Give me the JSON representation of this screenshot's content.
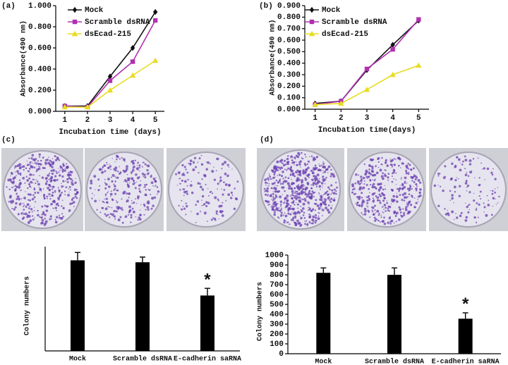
{
  "chart_data": [
    {
      "type": "line",
      "panel_label": "(a)",
      "xlabel": "Incubation time (days)",
      "ylabel": "Absorbance(490 nm)",
      "x": [
        1,
        2,
        3,
        4,
        5
      ],
      "xlim": [
        0.6,
        5.4
      ],
      "xticks": [
        1,
        2,
        3,
        4,
        5
      ],
      "ylim": [
        0,
        1
      ],
      "yticks": [
        {
          "value": 0,
          "label": "0.000"
        },
        {
          "value": 0.2,
          "label": "0.200"
        },
        {
          "value": 0.4,
          "label": "0.400"
        },
        {
          "value": 0.6,
          "label": "0.600"
        },
        {
          "value": 0.8,
          "label": "0.800"
        },
        {
          "value": 1,
          "label": "1.000"
        }
      ],
      "series": [
        {
          "name": "Mock",
          "color": "#111111",
          "marker": "diamond",
          "values": [
            0.05,
            0.05,
            0.33,
            0.6,
            0.94
          ]
        },
        {
          "name": "Scramble dsRNA",
          "color": "#b030b0",
          "marker": "square",
          "values": [
            0.05,
            0.04,
            0.29,
            0.47,
            0.86
          ]
        },
        {
          "name": "dsEcad-215",
          "color": "#e8dc20",
          "marker": "triangle",
          "values": [
            0.04,
            0.04,
            0.2,
            0.34,
            0.48
          ]
        }
      ]
    },
    {
      "type": "line",
      "panel_label": "(b)",
      "xlabel": "Incubation time(days)",
      "ylabel": "Absorbance(490 nm)",
      "x": [
        1,
        2,
        3,
        4,
        5
      ],
      "xlim": [
        0.6,
        5.4
      ],
      "xticks": [
        1,
        2,
        3,
        4,
        5
      ],
      "ylim": [
        0,
        0.9
      ],
      "yticks": [
        {
          "value": 0,
          "label": "0.000"
        },
        {
          "value": 0.1,
          "label": "0.100"
        },
        {
          "value": 0.2,
          "label": "0.200"
        },
        {
          "value": 0.3,
          "label": "0.300"
        },
        {
          "value": 0.4,
          "label": "0.400"
        },
        {
          "value": 0.5,
          "label": "0.500"
        },
        {
          "value": 0.6,
          "label": "0.600"
        },
        {
          "value": 0.7,
          "label": "0.700"
        },
        {
          "value": 0.8,
          "label": "0.800"
        },
        {
          "value": 0.9,
          "label": "0.900"
        }
      ],
      "series": [
        {
          "name": "Mock",
          "color": "#111111",
          "marker": "diamond",
          "values": [
            0.05,
            0.07,
            0.34,
            0.56,
            0.77
          ]
        },
        {
          "name": "Scramble dsRNA",
          "color": "#b030b0",
          "marker": "square",
          "values": [
            0.04,
            0.07,
            0.35,
            0.52,
            0.78
          ]
        },
        {
          "name": "dsEcad-215",
          "color": "#e8dc20",
          "marker": "triangle",
          "values": [
            0.04,
            0.05,
            0.17,
            0.3,
            0.38
          ]
        }
      ]
    },
    {
      "type": "bar",
      "panel_label": "(c)",
      "ylabel": "Colony numbers",
      "annotation": "*",
      "categories": [
        "Mock",
        "Scramble dsRNA",
        "E-cadherin saRNA"
      ],
      "values": [
        695,
        680,
        425
      ],
      "errors": [
        60,
        40,
        55
      ],
      "color": "#000000",
      "ylim": [
        0,
        800
      ]
    },
    {
      "type": "bar",
      "panel_label": "(d)",
      "ylabel": "Colony numbers",
      "annotation": "*",
      "categories": [
        "Mock",
        "Scramble dsRNA",
        "E-cadherin saRNA"
      ],
      "values": [
        820,
        800,
        355
      ],
      "errors": [
        50,
        70,
        60
      ],
      "color": "#000000",
      "ylim": [
        0,
        1000
      ],
      "yticks": [
        0,
        100,
        200,
        300,
        400,
        500,
        600,
        700,
        800,
        900,
        1000
      ]
    }
  ]
}
